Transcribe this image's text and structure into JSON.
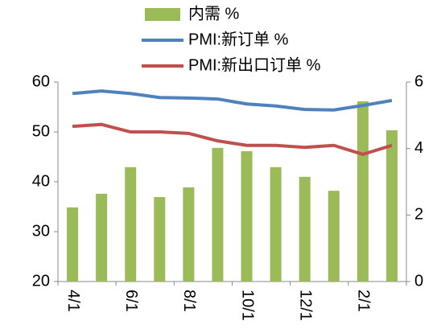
{
  "chart_data": {
    "type": "bar_line",
    "categories": [
      "4/1",
      null,
      "6/1",
      null,
      "8/1",
      null,
      "10/1",
      null,
      "12/1",
      null,
      "2/1",
      null
    ],
    "series": [
      {
        "name": "内需 %",
        "type": "bar",
        "axis": "y2",
        "color": "#9bbb59",
        "values": [
          2.23,
          2.64,
          3.44,
          2.54,
          2.83,
          4.02,
          3.92,
          3.44,
          3.15,
          2.73,
          5.42,
          4.55
        ]
      },
      {
        "name": "PMI:新订单 %",
        "type": "line",
        "color": "#4f81bd",
        "values": [
          57.7,
          58.2,
          57.7,
          56.9,
          56.8,
          56.6,
          55.6,
          55.2,
          54.5,
          54.4,
          55.3,
          56.3
        ]
      },
      {
        "name": "PMI:新出口订单 %",
        "type": "line",
        "color": "#c0504d",
        "values": [
          51.1,
          51.5,
          50,
          50,
          49.7,
          48.2,
          47.3,
          47.3,
          46.9,
          47.3,
          45.5,
          47.3
        ]
      }
    ],
    "ylim": [
      20,
      60
    ],
    "yticks": [
      20,
      30,
      40,
      50,
      60
    ],
    "y2lim": [
      0,
      6
    ],
    "y2ticks": [
      0,
      2,
      4,
      6
    ],
    "legend": "top"
  }
}
